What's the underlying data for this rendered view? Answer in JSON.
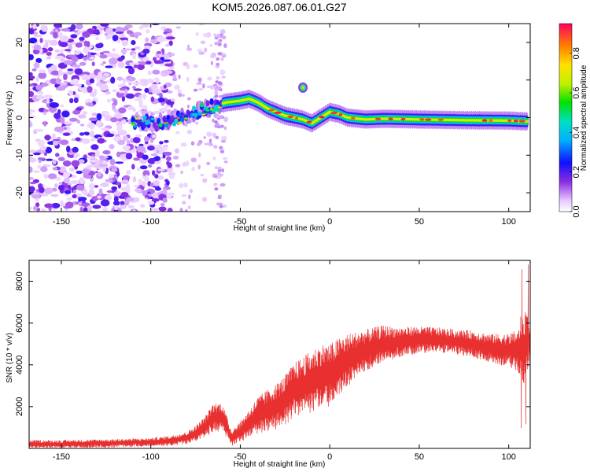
{
  "title": "KOM5.2026.087.06.01.G27",
  "colors": {
    "snr_line": "#e83030",
    "frame": "#000000",
    "background": "#ffffff"
  },
  "chart_data": [
    {
      "type": "heatmap",
      "name": "spectrogram",
      "xlabel": "Height of straight line (km)",
      "ylabel": "Frequency (Hz)",
      "xlim": [
        -168,
        112
      ],
      "ylim": [
        -25,
        25
      ],
      "x_ticks": [
        -150,
        -100,
        -50,
        0,
        50,
        100
      ],
      "y_ticks": [
        -20,
        -10,
        0,
        10,
        20
      ],
      "colorbar": {
        "label": "Normalized spectral amplitude",
        "range": [
          0,
          0.95
        ],
        "ticks": [
          0.0,
          0.2,
          0.4,
          0.6,
          0.8
        ]
      },
      "ridge": {
        "x": [
          -110,
          -95,
          -80,
          -65,
          -58,
          -50,
          -45,
          -40,
          -35,
          -30,
          -25,
          -20,
          -15,
          -10,
          -5,
          0,
          5,
          10,
          20,
          30,
          50,
          75,
          100,
          110
        ],
        "frequency": [
          -1,
          -1.5,
          0.5,
          3,
          4,
          4.5,
          5,
          4,
          2.5,
          1.5,
          0.5,
          0,
          -0.5,
          -1.5,
          0,
          1.5,
          1,
          0,
          -0.5,
          -0.3,
          -0.5,
          -0.7,
          -0.8,
          -1.0
        ]
      },
      "isolated_blob": {
        "x": -15,
        "frequency": 8
      }
    },
    {
      "type": "line",
      "name": "snr",
      "xlabel": "Height of straight line (km)",
      "ylabel": "SNR (10 * v/v)",
      "xlim": [
        -168,
        112
      ],
      "ylim": [
        0,
        9000
      ],
      "x_ticks": [
        -150,
        -100,
        -50,
        0,
        50,
        100
      ],
      "y_ticks": [
        2000,
        4000,
        6000,
        8000
      ],
      "series": [
        {
          "name": "SNR",
          "x": [
            -168,
            -150,
            -120,
            -100,
            -90,
            -80,
            -75,
            -70,
            -65,
            -60,
            -55,
            -50,
            -45,
            -40,
            -35,
            -30,
            -25,
            -20,
            -15,
            -10,
            -5,
            0,
            5,
            10,
            15,
            20,
            30,
            40,
            50,
            60,
            70,
            80,
            90,
            100,
            105,
            108,
            110,
            112
          ],
          "y": [
            200,
            200,
            250,
            300,
            350,
            500,
            700,
            1000,
            1500,
            1500,
            500,
            800,
            1200,
            1600,
            1800,
            2000,
            2300,
            2800,
            3000,
            3200,
            3500,
            3500,
            3900,
            4200,
            4500,
            4700,
            5000,
            5100,
            5200,
            5200,
            5100,
            5000,
            4800,
            4700,
            4700,
            4800,
            5000,
            5000
          ],
          "spread": [
            200,
            200,
            200,
            200,
            250,
            300,
            400,
            500,
            700,
            700,
            400,
            500,
            700,
            900,
            1000,
            1100,
            1200,
            1300,
            1400,
            1500,
            1500,
            1500,
            1400,
            1300,
            1100,
            1000,
            900,
            700,
            650,
            600,
            600,
            650,
            700,
            800,
            1000,
            2000,
            1500,
            800
          ]
        }
      ]
    }
  ]
}
